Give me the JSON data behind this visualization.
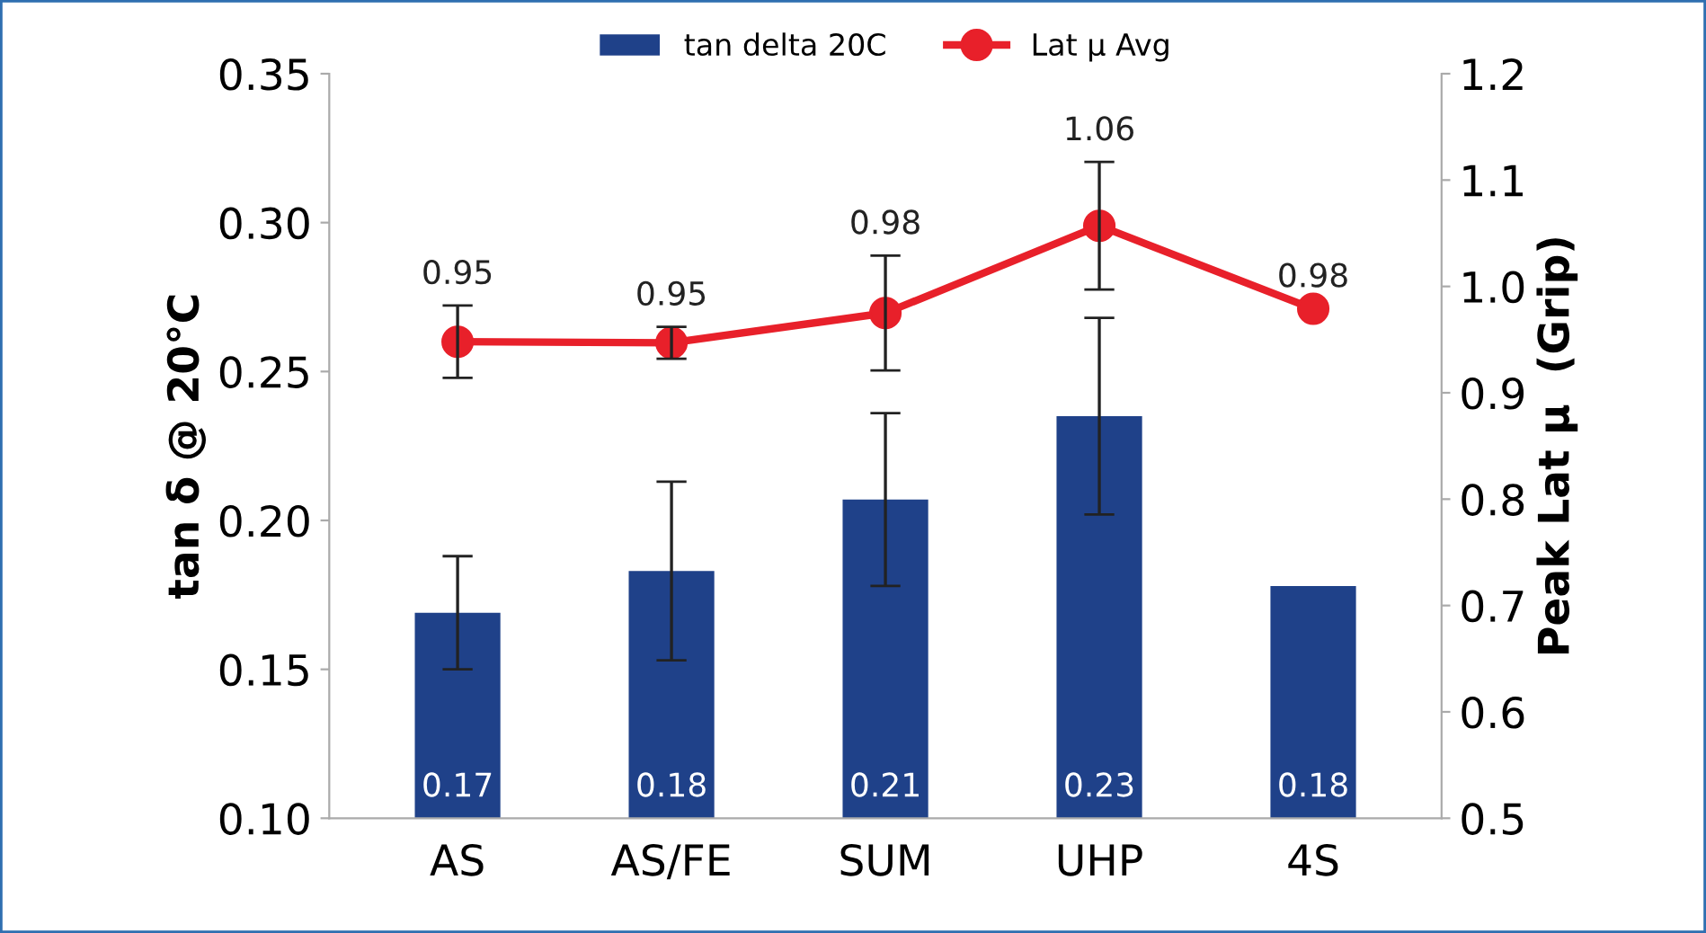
{
  "chart_data": {
    "type": "bar",
    "categories": [
      "AS",
      "AS/FE",
      "SUM",
      "UHP",
      "4S"
    ],
    "ylabel": "tan δ @ 20°C",
    "y2label": "Peak Lat µ  (Grip)",
    "ylim": [
      0.1,
      0.35
    ],
    "yticks": [
      {
        "value": 0.1,
        "label": "0.10"
      },
      {
        "value": 0.15,
        "label": "0.15"
      },
      {
        "value": 0.2,
        "label": "0.20"
      },
      {
        "value": 0.25,
        "label": "0.25"
      },
      {
        "value": 0.3,
        "label": "0.30"
      },
      {
        "value": 0.35,
        "label": "0.35"
      }
    ],
    "y2lim": [
      0.5,
      1.2
    ],
    "y2ticks": [
      0.5,
      0.6,
      0.7,
      0.8,
      0.9,
      {
        "value": 1.0,
        "label": "1.0"
      },
      1.1,
      1.2
    ],
    "series": [
      {
        "name": "tan delta 20C",
        "color": "#1f4189",
        "values": [
          0.169,
          0.183,
          0.207,
          0.235,
          0.178
        ],
        "errors": [
          0.019,
          0.03,
          0.029,
          0.033,
          null
        ],
        "value_labels": [
          "0.17",
          "0.18",
          "0.21",
          "0.23",
          "0.18"
        ]
      },
      {
        "name": "Lat µ Avg",
        "type": "line",
        "axis": "y2",
        "color": "#e8202a",
        "values": [
          0.948,
          0.947,
          0.975,
          1.057,
          0.979
        ],
        "errors": [
          0.034,
          0.015,
          0.054,
          0.06,
          null
        ],
        "value_labels": [
          "0.95",
          "0.95",
          "0.98",
          "1.06",
          "0.98"
        ],
        "marker": "circle"
      }
    ],
    "legend": "top",
    "grid": false
  }
}
